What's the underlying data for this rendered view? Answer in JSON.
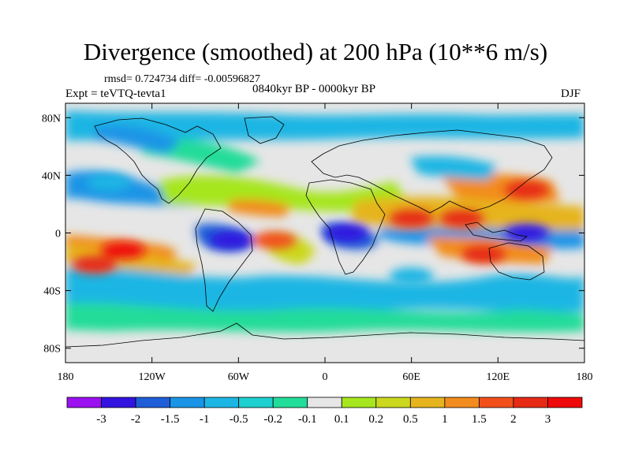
{
  "title": "Divergence (smoothed) at 200 hPa (10**6 m/s)",
  "stats_line": "rmsd= 0.724734 diff= -0.00596827",
  "period": "0840kyr BP - 0000kyr BP",
  "experiment": "Expt = teVTQ-tevta1",
  "season": "DJF",
  "map": {
    "projection": "cylindrical-equidistant",
    "lon_range": [
      -180,
      180
    ],
    "lat_range": [
      -90,
      90
    ],
    "lat_ticks": [
      {
        "value": 80,
        "label": "80N"
      },
      {
        "value": 40,
        "label": "40N"
      },
      {
        "value": 0,
        "label": "0"
      },
      {
        "value": -40,
        "label": "40S"
      },
      {
        "value": -80,
        "label": "80S"
      }
    ],
    "lon_ticks": [
      {
        "value": -180,
        "label": "180"
      },
      {
        "value": -120,
        "label": "120W"
      },
      {
        "value": -60,
        "label": "60W"
      },
      {
        "value": 0,
        "label": "0"
      },
      {
        "value": 60,
        "label": "60E"
      },
      {
        "value": 120,
        "label": "120E"
      },
      {
        "value": 180,
        "label": "180"
      }
    ],
    "background_color": "#e6e6e6",
    "features": [
      {
        "name": "convergence-core-east-pacific",
        "lon": -140,
        "lat": -12,
        "value": 3.0
      },
      {
        "name": "convergence-band-south-pacific",
        "lon": -160,
        "lat": -22,
        "value": 2.0
      },
      {
        "name": "divergence-core-amazon",
        "lon": -65,
        "lat": -5,
        "value": -2.5
      },
      {
        "name": "divergence-core-africa",
        "lon": 15,
        "lat": 0,
        "value": -2.8
      },
      {
        "name": "convergence-core-atlantic",
        "lon": -35,
        "lat": -5,
        "value": 1.5
      },
      {
        "name": "convergence-band-north-africa",
        "lon": 60,
        "lat": 10,
        "value": 2.0
      },
      {
        "name": "convergence-core-indian-ocean",
        "lon": 95,
        "lat": 10,
        "value": 2.5
      },
      {
        "name": "divergence-core-maritime-continent",
        "lon": 140,
        "lat": 0,
        "value": -3.0
      },
      {
        "name": "convergence-core-east-asia",
        "lon": 140,
        "lat": 30,
        "value": 2.0
      },
      {
        "name": "convergence-core-south-indian",
        "lon": 110,
        "lat": -15,
        "value": 2.5
      },
      {
        "name": "divergence-band-north-pacific",
        "lon": -150,
        "lat": 35,
        "value": -1.0
      },
      {
        "name": "divergence-band-south-indian",
        "lon": 60,
        "lat": -30,
        "value": -0.8
      }
    ]
  },
  "colorbar": {
    "label_values": [
      "-3",
      "-2",
      "-1.5",
      "-1",
      "-0.5",
      "-0.2",
      "-0.1",
      "0.1",
      "0.2",
      "0.5",
      "1",
      "1.5",
      "2",
      "3"
    ],
    "colors": [
      "#9b11f0",
      "#3313e0",
      "#1f5ed8",
      "#1a94e6",
      "#1cb6e4",
      "#1fd0d0",
      "#22dc9a",
      "#e6e6e6",
      "#a6e61e",
      "#ccd81e",
      "#e6b41e",
      "#f28c1e",
      "#f2501a",
      "#e62a14",
      "#ee0a0a"
    ]
  }
}
